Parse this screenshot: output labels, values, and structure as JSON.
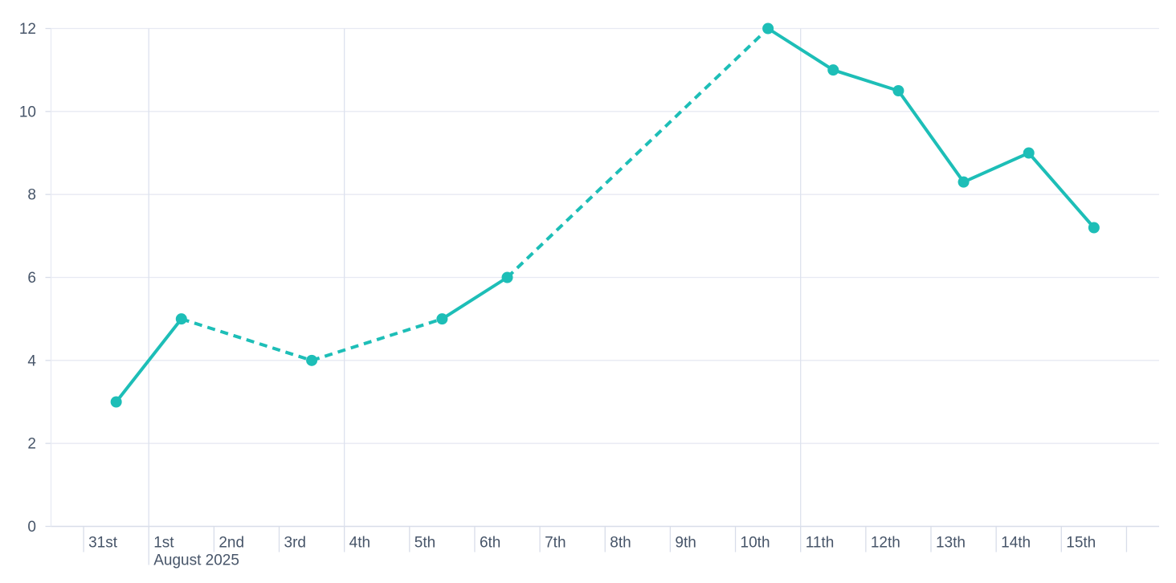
{
  "chart_data": {
    "type": "line",
    "title": "",
    "legend": false,
    "grid": true,
    "x_axis": {
      "categories": [
        "31st",
        "1st",
        "2nd",
        "3rd",
        "4th",
        "5th",
        "6th",
        "7th",
        "8th",
        "9th",
        "10th",
        "11th",
        "12th",
        "13th",
        "14th",
        "15th"
      ],
      "month_label": "August 2025",
      "month_label_tick_index": 1,
      "num_ticks": 17,
      "major_gridline_tick_indices": [
        1,
        4,
        11
      ]
    },
    "y_axis": {
      "tick_labels": [
        "0",
        "2",
        "4",
        "6",
        "8",
        "10",
        "12"
      ],
      "ticks": [
        0,
        2,
        4,
        6,
        8,
        10,
        12
      ],
      "min": 0,
      "max": 12
    },
    "series": [
      {
        "name": "series-1",
        "color": "#1dbeb7",
        "points": [
          {
            "category": "31st",
            "slot": 0,
            "value": 3
          },
          {
            "category": "1st",
            "slot": 1,
            "value": 5
          },
          {
            "category": "3rd",
            "slot": 3,
            "value": 4
          },
          {
            "category": "5th",
            "slot": 5,
            "value": 5
          },
          {
            "category": "6th",
            "slot": 6,
            "value": 6
          },
          {
            "category": "10th",
            "slot": 10,
            "value": 12
          },
          {
            "category": "11th",
            "slot": 11,
            "value": 11
          },
          {
            "category": "12th",
            "slot": 12,
            "value": 10.5
          },
          {
            "category": "13th",
            "slot": 13,
            "value": 8.3
          },
          {
            "category": "14th",
            "slot": 14,
            "value": 9
          },
          {
            "category": "15th",
            "slot": 15,
            "value": 7.2
          }
        ],
        "segment_styles": [
          "solid",
          "dashed",
          "dashed",
          "solid",
          "dashed",
          "solid",
          "solid",
          "solid",
          "solid",
          "solid"
        ]
      }
    ],
    "colors": {
      "accent": "#1dbeb7",
      "gridline": "#e7eaf3",
      "major_gridline": "#dde2ee",
      "axis_line": "#d8dde9",
      "label": "#475569"
    }
  }
}
